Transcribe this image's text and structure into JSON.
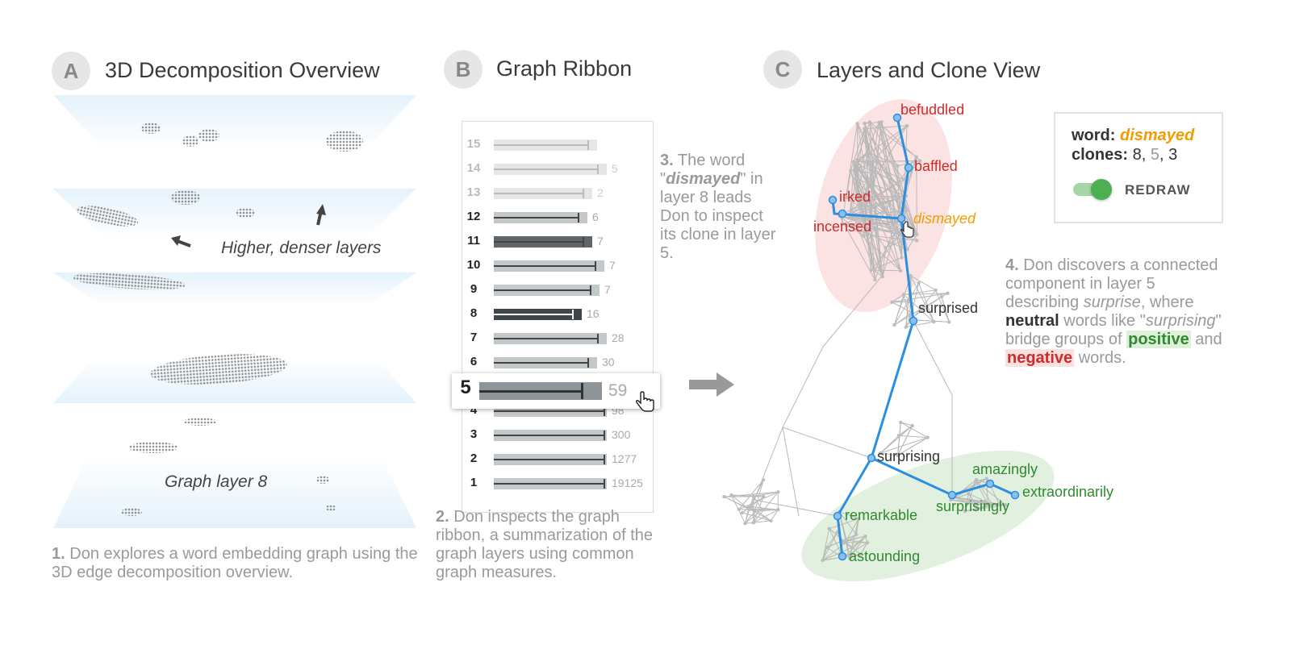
{
  "panels": {
    "a": {
      "badge": "A",
      "title": "3D Decomposition Overview"
    },
    "b": {
      "badge": "B",
      "title": "Graph Ribbon"
    },
    "c": {
      "badge": "C",
      "title": "Layers and Clone View"
    }
  },
  "overview": {
    "annotation": "Higher, denser layers",
    "layer_label": "Graph layer 8"
  },
  "captions": {
    "c1_num": "1.",
    "c1_text": "Don explores a word embedding graph using the 3D edge decomposition overview.",
    "c2_num": "2.",
    "c2_text": "Don inspects the graph ribbon, a summarization of the graph layers using common graph measures.",
    "c3_num": "3.",
    "c3_pre": "The word \"",
    "c3_word": "dismayed",
    "c3_post": "\" in layer 8 leads Don to inspect its clone in layer 5.",
    "c4_num": "4.",
    "c4_t1": "Don discovers a connected component in layer 5 describing ",
    "c4_surprise": "surprise",
    "c4_t2": ", where ",
    "c4_neutral": "neutral",
    "c4_t3": " words like \"",
    "c4_surprising": "surprising",
    "c4_t4": "\" bridge groups of ",
    "c4_positive": "positive",
    "c4_t5": " and ",
    "c4_negative": "negative",
    "c4_t6": " words."
  },
  "ribbon": {
    "rows": [
      {
        "layer": "15",
        "value": "",
        "bar": 0.42,
        "dark": false
      },
      {
        "layer": "14",
        "value": "5",
        "bar": 0.46,
        "dark": false
      },
      {
        "layer": "13",
        "value": "2",
        "bar": 0.4,
        "dark": false
      },
      {
        "layer": "12",
        "value": "6",
        "bar": 0.38,
        "dark": false
      },
      {
        "layer": "11",
        "value": "7",
        "bar": 0.4,
        "dark": true
      },
      {
        "layer": "10",
        "value": "7",
        "bar": 0.45,
        "dark": false
      },
      {
        "layer": "9",
        "value": "7",
        "bar": 0.43,
        "dark": false
      },
      {
        "layer": "8",
        "value": "16",
        "bar": 0.36,
        "dark": true
      },
      {
        "layer": "7",
        "value": "28",
        "bar": 0.49,
        "dark": false
      },
      {
        "layer": "6",
        "value": "30",
        "bar": 0.42,
        "dark": false
      },
      {
        "layer": "4",
        "value": "98",
        "bar": 0.48,
        "dark": false
      },
      {
        "layer": "3",
        "value": "300",
        "bar": 0.53,
        "dark": false
      },
      {
        "layer": "2",
        "value": "1277",
        "bar": 0.55,
        "dark": false
      },
      {
        "layer": "1",
        "value": "19125",
        "bar": 0.6,
        "dark": false
      }
    ],
    "selected": {
      "layer": "5",
      "value": "59"
    }
  },
  "legend": {
    "word_label": "word:",
    "word": "dismayed",
    "clones_label": "clones:",
    "clone_a": "8",
    "clone_sep1": ", ",
    "clone_b": "5",
    "clone_sep2": ", ",
    "clone_c": "3",
    "toggle_label": "REDRAW"
  },
  "graph_words": {
    "befuddled": "befuddled",
    "baffled": "baffled",
    "irked": "irked",
    "dismayed": "dismayed",
    "incensed": "incensed",
    "surprised": "surprised",
    "surprising": "surprising",
    "amazingly": "amazingly",
    "extraordinarily": "extraordinarily",
    "surprisingly": "surprisingly",
    "remarkable": "remarkable",
    "astounding": "astounding"
  },
  "colors": {
    "path": "#2a8fe0",
    "negative": "#cf2b2b",
    "positive": "#2f8a2f",
    "selected_word": "#f39c00",
    "toggle": "#4caf50"
  }
}
